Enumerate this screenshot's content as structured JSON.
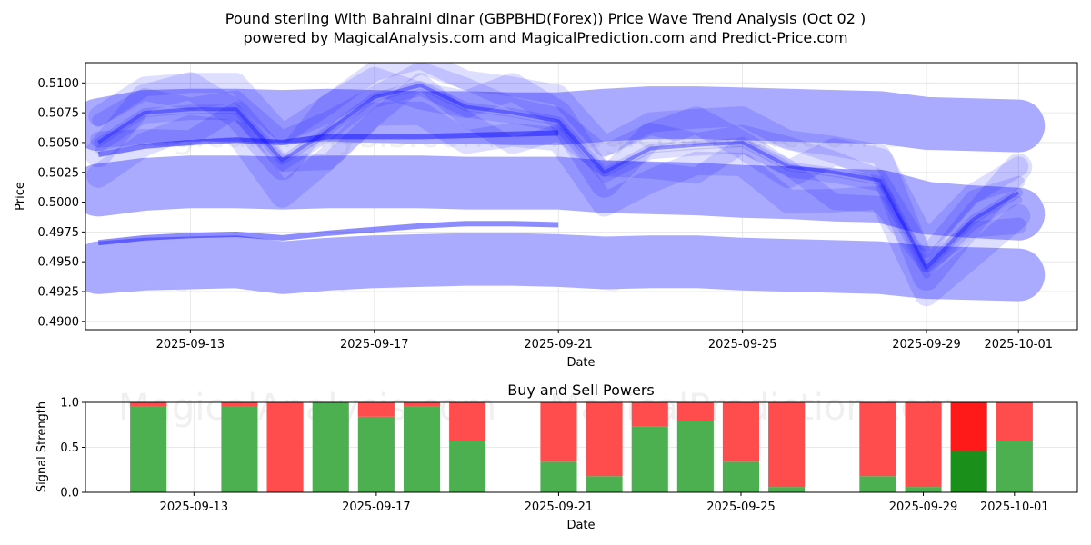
{
  "header": {
    "title_line1": "Pound sterling With Bahraini dinar (GBPBHD(Forex)) Price Wave Trend Analysis (Oct 02 )",
    "title_line2": "powered by MagicalAnalysis.com and MagicalPrediction.com and Predict-Price.com"
  },
  "watermarks": [
    "MagicalAnalysis.com",
    "MagicalPrediction.com"
  ],
  "colors": {
    "wave": "#0000ff",
    "band": "#aaaaff",
    "buy": "#4caf50",
    "sell": "#ff4c4c",
    "buy_strong": "#1a8f1a",
    "sell_strong": "#ff1a1a"
  },
  "chart_data": [
    {
      "type": "line",
      "title": "",
      "xlabel": "Date",
      "ylabel": "Price",
      "ylim": [
        0.4893,
        0.5117
      ],
      "yticks": [
        "0.4900",
        "0.4925",
        "0.4950",
        "0.4975",
        "0.5000",
        "0.5025",
        "0.5050",
        "0.5075",
        "0.5100"
      ],
      "xticks": [
        "2025-09-13",
        "2025-09-17",
        "2025-09-21",
        "2025-09-25",
        "2025-09-29",
        "2025-10-01"
      ],
      "x": [
        "2025-09-11",
        "2025-09-12",
        "2025-09-13",
        "2025-09-14",
        "2025-09-15",
        "2025-09-16",
        "2025-09-17",
        "2025-09-18",
        "2025-09-19",
        "2025-09-20",
        "2025-09-21",
        "2025-09-22",
        "2025-09-23",
        "2025-09-24",
        "2025-09-25",
        "2025-09-26",
        "2025-09-27",
        "2025-09-28",
        "2025-09-29",
        "2025-09-30",
        "2025-10-01"
      ],
      "series": [
        {
          "name": "wave",
          "values": [
            0.505,
            0.5075,
            0.5078,
            0.5078,
            0.5035,
            0.506,
            0.5088,
            0.5098,
            0.508,
            0.5075,
            0.5068,
            0.5025,
            0.5045,
            0.5048,
            0.505,
            0.503,
            0.5025,
            0.5018,
            0.4945,
            0.4985,
            0.5008
          ]
        },
        {
          "name": "band-upper",
          "values": [
            0.5065,
            0.5072,
            0.5073,
            0.5073,
            0.5072,
            0.5073,
            0.5072,
            0.5071,
            0.5071,
            0.507,
            0.507,
            0.5073,
            0.5075,
            0.5075,
            0.5074,
            0.5073,
            0.5072,
            0.5071,
            0.5066,
            0.5065,
            0.5064
          ]
        },
        {
          "name": "band-middle",
          "values": [
            0.501,
            0.5015,
            0.5017,
            0.5017,
            0.5016,
            0.5017,
            0.5017,
            0.5017,
            0.5016,
            0.5016,
            0.5016,
            0.5013,
            0.5012,
            0.5011,
            0.5009,
            0.5008,
            0.5006,
            0.5005,
            0.4995,
            0.4992,
            0.499
          ]
        },
        {
          "name": "band-lower",
          "values": [
            0.4945,
            0.4948,
            0.4949,
            0.495,
            0.4945,
            0.4948,
            0.495,
            0.4951,
            0.4952,
            0.4952,
            0.4951,
            0.4949,
            0.495,
            0.495,
            0.4948,
            0.4947,
            0.4946,
            0.4945,
            0.4941,
            0.494,
            0.4939
          ]
        }
      ],
      "grid": true
    },
    {
      "type": "bar",
      "title": "Buy and Sell Powers",
      "xlabel": "Date",
      "ylabel": "Signal Strength",
      "ylim": [
        0,
        1
      ],
      "yticks": [
        "0.0",
        "0.5",
        "1.0"
      ],
      "xticks": [
        "2025-09-13",
        "2025-09-17",
        "2025-09-21",
        "2025-09-25",
        "2025-09-29",
        "2025-10-01"
      ],
      "categories": [
        "2025-09-12",
        "2025-09-14",
        "2025-09-15",
        "2025-09-16",
        "2025-09-17",
        "2025-09-18",
        "2025-09-19",
        "2025-09-21",
        "2025-09-22",
        "2025-09-23",
        "2025-09-24",
        "2025-09-25",
        "2025-09-26",
        "2025-09-28",
        "2025-09-29",
        "2025-09-30",
        "2025-10-01"
      ],
      "series": [
        {
          "name": "Buy",
          "values": [
            0.95,
            0.96,
            0.0,
            1.0,
            0.84,
            0.95,
            0.57,
            0.34,
            0.18,
            0.73,
            0.79,
            0.34,
            0.06,
            0.18,
            0.06,
            0.46,
            0.57
          ]
        },
        {
          "name": "Sell",
          "values": [
            0.05,
            0.04,
            1.0,
            0.0,
            0.16,
            0.05,
            0.43,
            0.66,
            0.82,
            0.27,
            0.21,
            0.66,
            0.94,
            0.82,
            0.94,
            0.54,
            0.43
          ]
        }
      ],
      "grid": true
    }
  ]
}
